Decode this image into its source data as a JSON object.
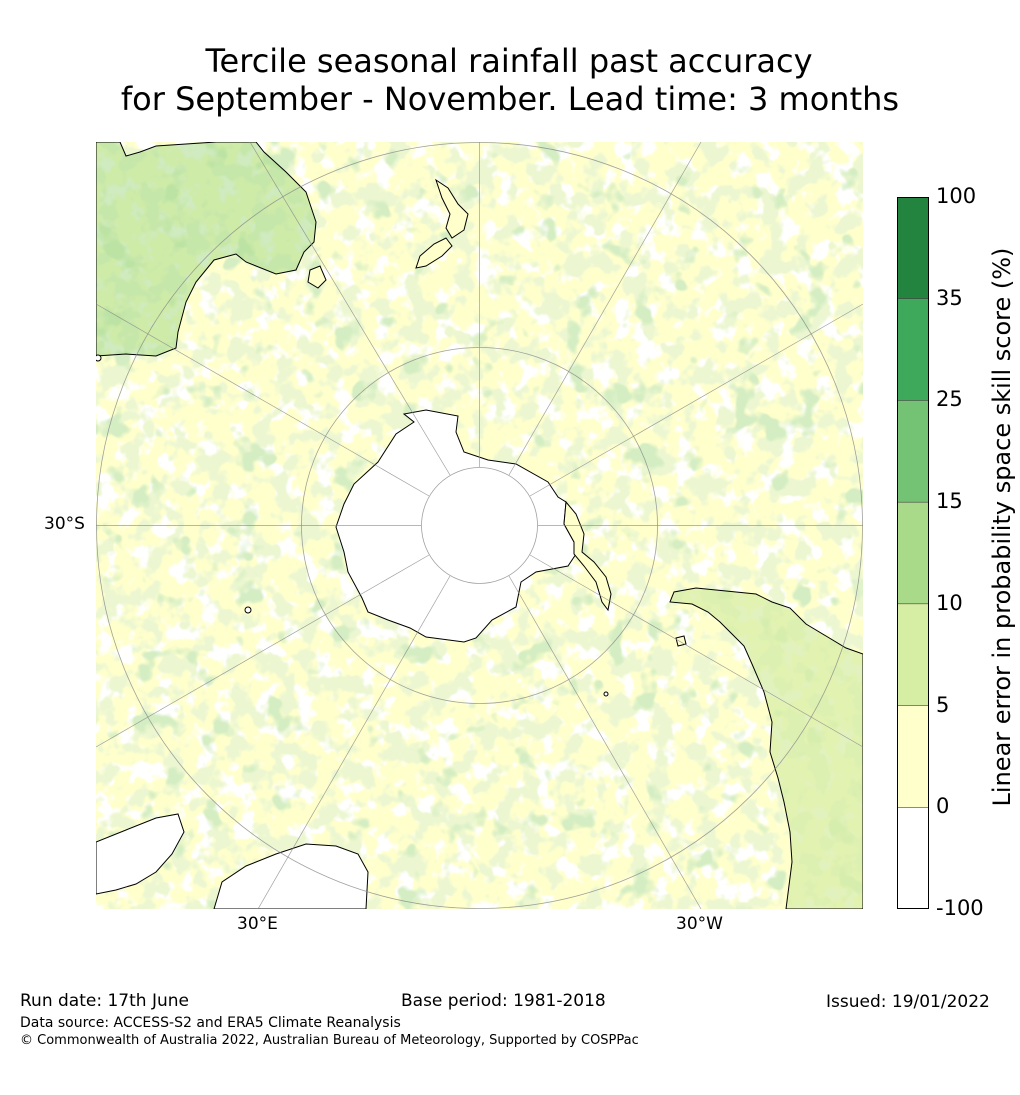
{
  "title_line1": "Tercile seasonal rainfall past accuracy",
  "title_line2": "for September - November. Lead time: 3 months",
  "map_labels": {
    "lat_left": "30°S",
    "lon_bottom_left": "30°E",
    "lon_bottom_right": "30°W"
  },
  "colorbar": {
    "label": "Linear error in probability space skill score (%)",
    "ticks": [
      "100",
      "35",
      "25",
      "15",
      "10",
      "5",
      "0",
      "-100"
    ],
    "bins": [
      {
        "from": "35",
        "to": "100",
        "color": "#23843f"
      },
      {
        "from": "25",
        "to": "35",
        "color": "#3ea95b"
      },
      {
        "from": "15",
        "to": "25",
        "color": "#74c374"
      },
      {
        "from": "10",
        "to": "15",
        "color": "#a8da8a"
      },
      {
        "from": "5",
        "to": "10",
        "color": "#d6eda4"
      },
      {
        "from": "0",
        "to": "5",
        "color": "#ffffcc"
      },
      {
        "from": "-100",
        "to": "0",
        "color": "#ffffff"
      }
    ]
  },
  "footer": {
    "run_date": "Run date: 17th June",
    "base_period": "Base period: 1981-2018",
    "issued": "Issued: 19/01/2022",
    "data_source": "Data source: ACCESS-S2 and ERA5 Climate Reanalysis",
    "copyright": "© Commonwealth of Australia 2022, Australian Bureau of Meteorology, Supported by COSPPac"
  }
}
